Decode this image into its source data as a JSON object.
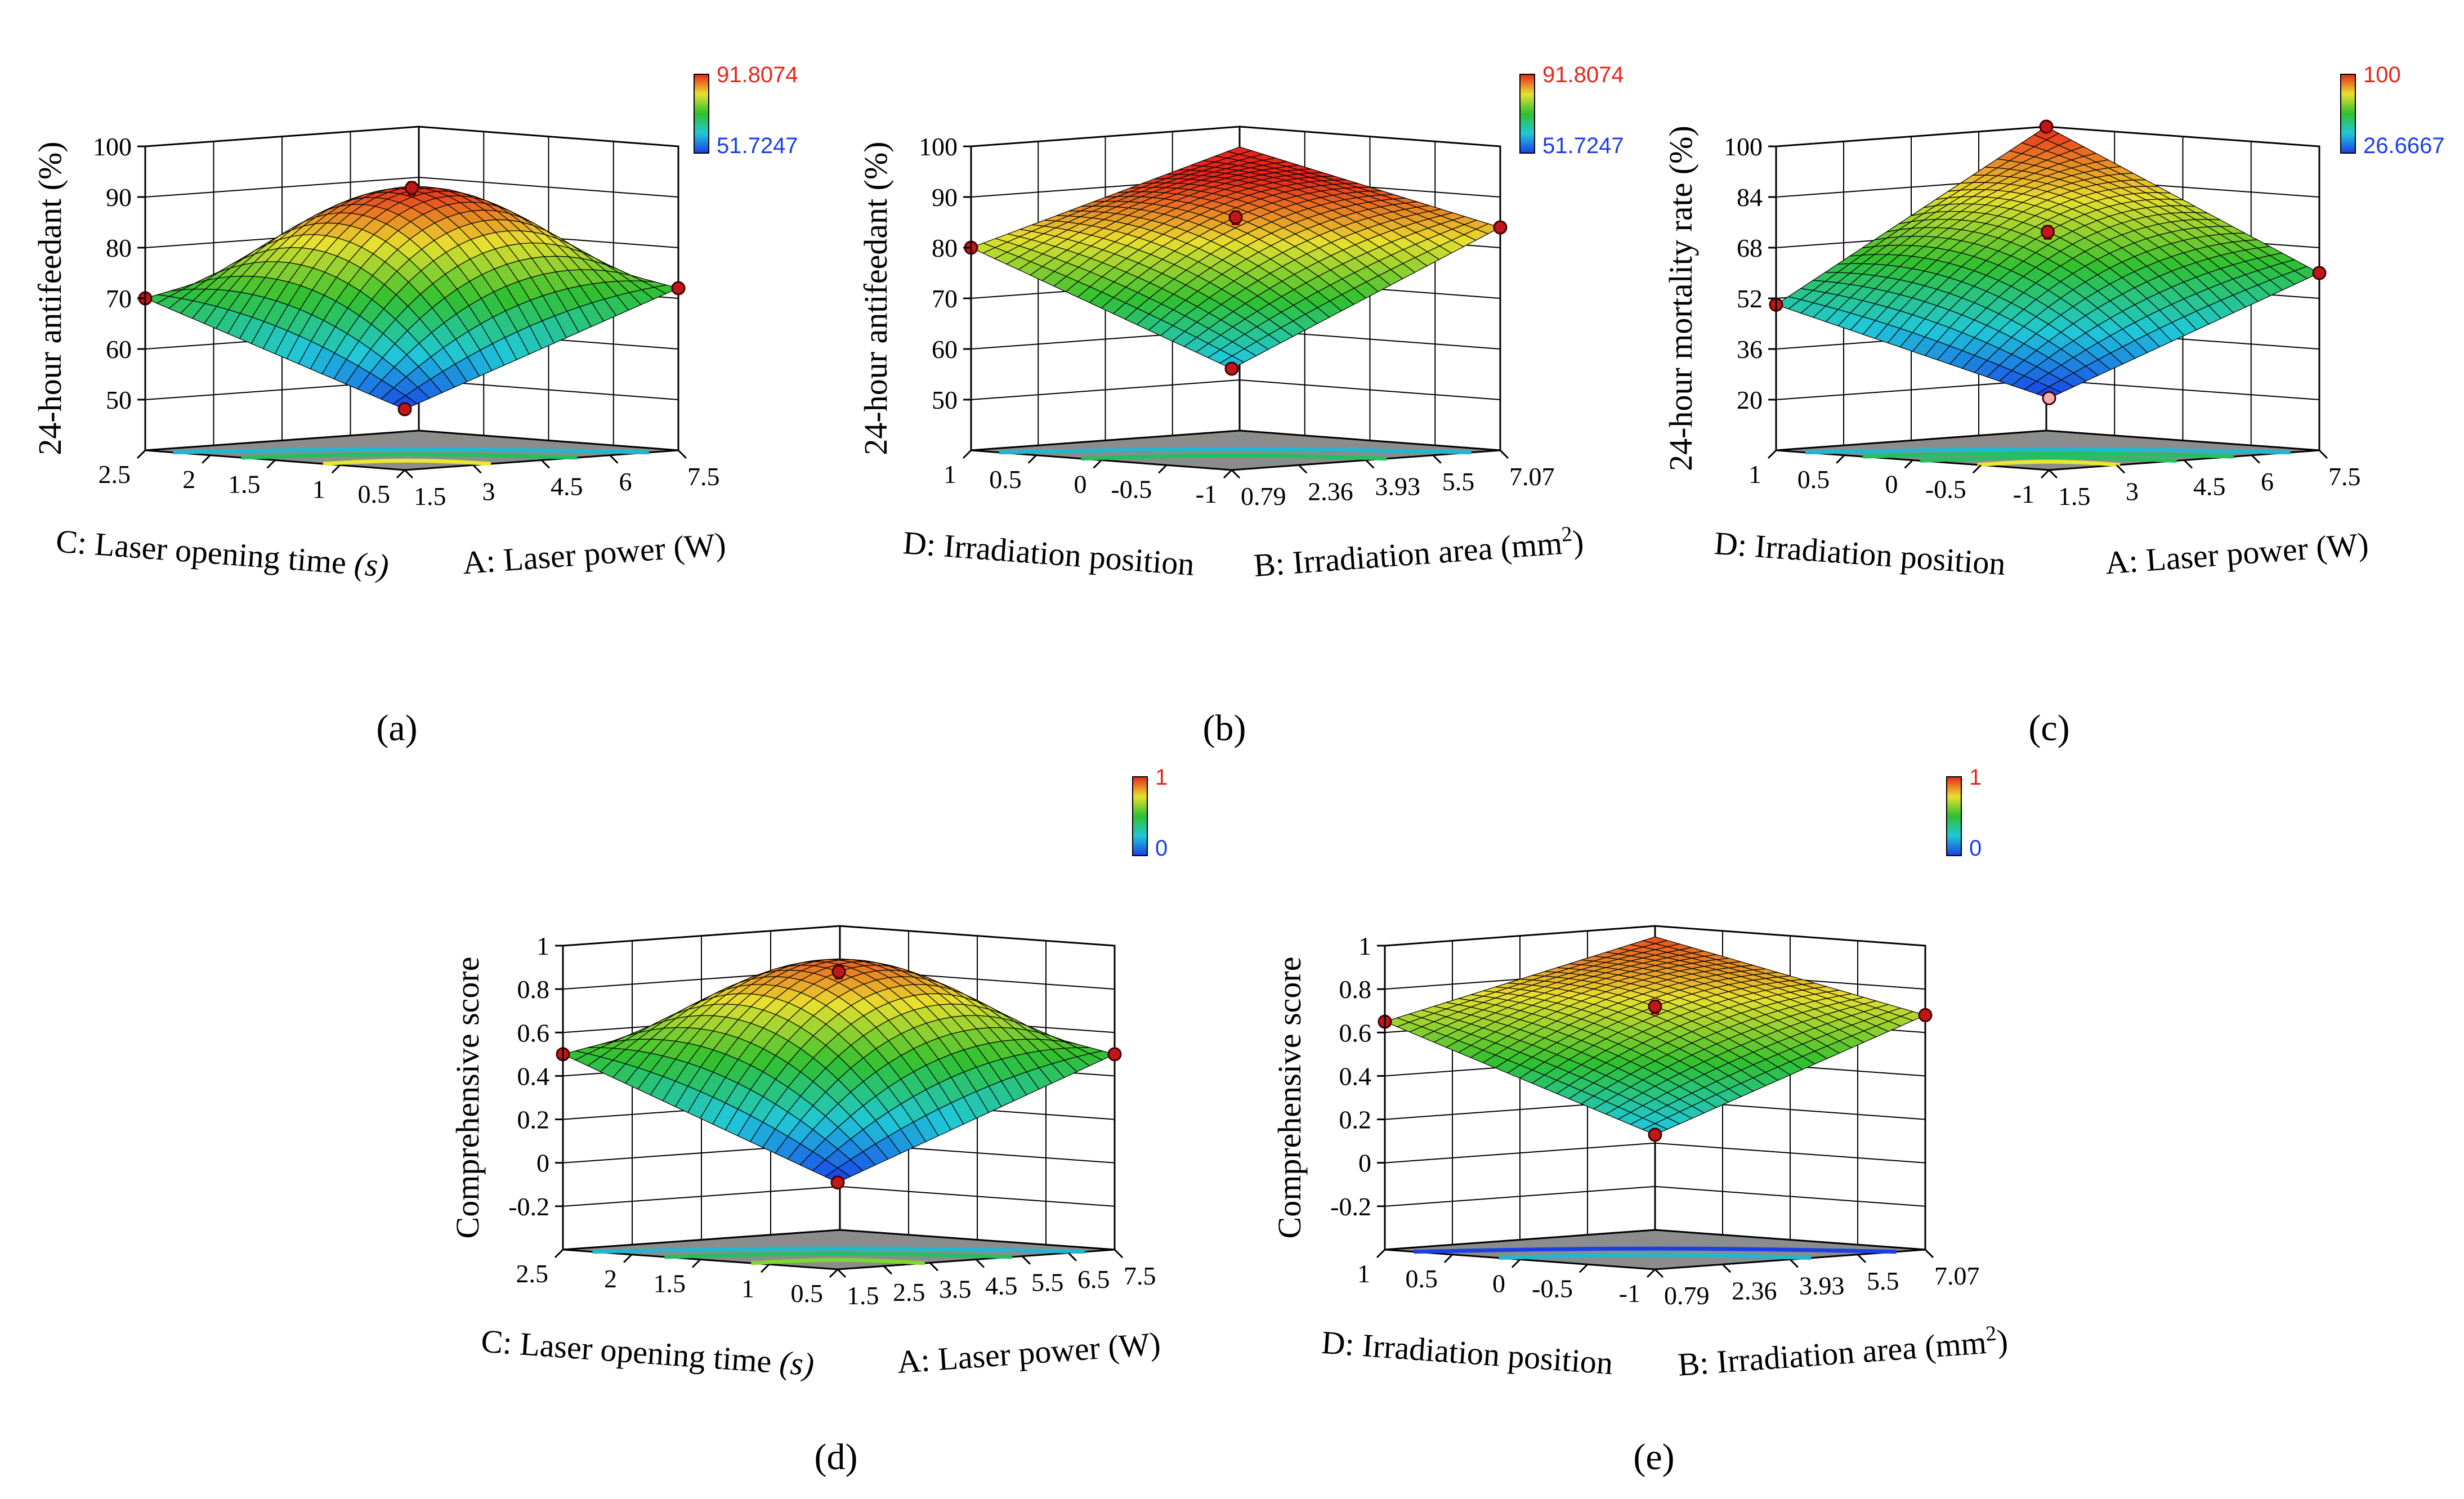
{
  "chart_data": [
    {
      "type": "surface3d",
      "panel_label": "(a)",
      "zlabel": "24-hour antifeedant (%)",
      "xlabel_main": "A: Laser power (W)",
      "xlabel_sup": "",
      "ylabel_main": "C: Laser opening time ",
      "ylabel_italic": "(s)",
      "x_ticks": [
        "1.5",
        "3",
        "4.5",
        "6",
        "7.5"
      ],
      "y_ticks": [
        "0.5",
        "1",
        "1.5",
        "2",
        "2.5"
      ],
      "z_ticks": [
        "50",
        "60",
        "70",
        "80",
        "90",
        "100"
      ],
      "zlim": [
        40,
        100
      ],
      "colorbar": {
        "max_label": "91.8074",
        "min_label": "51.7247",
        "max_color": "#e8261a",
        "min_color": "#1a3ee8"
      },
      "surface": {
        "center": 90,
        "corner_low": 52,
        "corner_left": 70,
        "corner_right": 72,
        "corner_back": 82
      },
      "corner_points": [
        {
          "at": "front",
          "value": 52
        },
        {
          "at": "left",
          "value": 70
        },
        {
          "at": "right",
          "value": 72
        },
        {
          "at": "center",
          "value": 91.8
        }
      ],
      "contours": [
        {
          "t": 0.3,
          "color": "#e8e830"
        },
        {
          "t": 0.6,
          "color": "#22c060"
        },
        {
          "t": 0.85,
          "color": "#20b8d0"
        }
      ]
    },
    {
      "type": "surface3d",
      "panel_label": "(b)",
      "zlabel": "24-hour antifeedant (%)",
      "xlabel_main": "B: Irradiation area (mm",
      "xlabel_sup": "2",
      "ylabel_main": "D: Irradiation position",
      "ylabel_italic": "",
      "x_ticks": [
        "0.79",
        "2.36",
        "3.93",
        "5.5",
        "7.07"
      ],
      "y_ticks": [
        "-1",
        "-0.5",
        "0",
        "0.5",
        "1"
      ],
      "z_ticks": [
        "50",
        "60",
        "70",
        "80",
        "90",
        "100"
      ],
      "zlim": [
        40,
        100
      ],
      "colorbar": {
        "max_label": "91.8074",
        "min_label": "51.7247",
        "max_color": "#e8261a",
        "min_color": "#1a3ee8"
      },
      "surface": {
        "center": 86,
        "corner_low": 60,
        "corner_left": 80,
        "corner_right": 84,
        "corner_back": 96
      },
      "corner_points": [
        {
          "at": "front",
          "value": 60
        },
        {
          "at": "left",
          "value": 80
        },
        {
          "at": "right",
          "value": 84
        },
        {
          "at": "center",
          "value": 86
        }
      ],
      "contours": [
        {
          "t": 0.55,
          "color": "#22c060"
        },
        {
          "t": 0.85,
          "color": "#20b8d0"
        }
      ]
    },
    {
      "type": "surface3d",
      "panel_label": "(c)",
      "zlabel": "24-hour mortality rate (%)",
      "xlabel_main": "A: Laser power (W)",
      "xlabel_sup": "",
      "ylabel_main": "D: Irradiation position",
      "ylabel_italic": "",
      "x_ticks": [
        "1.5",
        "3",
        "4.5",
        "6",
        "7.5"
      ],
      "y_ticks": [
        "-1",
        "-0.5",
        "0",
        "0.5",
        "1"
      ],
      "z_ticks": [
        "20",
        "36",
        "52",
        "68",
        "84",
        "100"
      ],
      "zlim": [
        4,
        100
      ],
      "colorbar": {
        "max_label": "100",
        "min_label": "26.6667",
        "max_color": "#e8261a",
        "min_color": "#1a3ee8"
      },
      "surface": {
        "center": 73,
        "corner_low": 26.7,
        "corner_left": 50,
        "corner_right": 60,
        "corner_back": 100
      },
      "corner_points": [
        {
          "at": "front",
          "value": 26.7
        },
        {
          "at": "left",
          "value": 50
        },
        {
          "at": "right",
          "value": 60
        },
        {
          "at": "back",
          "value": 100
        },
        {
          "at": "center",
          "value": 73
        }
      ],
      "contours": [
        {
          "t": 0.25,
          "color": "#e8e830"
        },
        {
          "t": 0.45,
          "color": "#22c060"
        },
        {
          "t": 0.65,
          "color": "#22c060"
        },
        {
          "t": 0.85,
          "color": "#20b8d0"
        }
      ]
    },
    {
      "type": "surface3d",
      "panel_label": "(d)",
      "zlabel": "Comprehensive score",
      "xlabel_main": "A: Laser power (W)",
      "xlabel_sup": "",
      "ylabel_main": "C: Laser opening time ",
      "ylabel_italic": "(s)",
      "x_ticks": [
        "1.5",
        "2.5",
        "3.5",
        "4.5",
        "5.5",
        "6.5",
        "7.5"
      ],
      "y_ticks": [
        "0.5",
        "1",
        "1.5",
        "2",
        "2.5"
      ],
      "z_ticks": [
        "-0.2",
        "0",
        "0.2",
        "0.4",
        "0.6",
        "0.8",
        "1"
      ],
      "zlim": [
        -0.4,
        1
      ],
      "colorbar": {
        "max_label": "1",
        "min_label": "0",
        "max_color": "#e8261a",
        "min_color": "#1a3ee8"
      },
      "surface": {
        "center": 0.88,
        "corner_low": 0.0,
        "corner_left": 0.5,
        "corner_right": 0.5,
        "corner_back": 0.75
      },
      "corner_points": [
        {
          "at": "front",
          "value": 0.0
        },
        {
          "at": "left",
          "value": 0.5
        },
        {
          "at": "right",
          "value": 0.5
        },
        {
          "at": "center",
          "value": 0.88
        }
      ],
      "contours": [
        {
          "t": 0.3,
          "color": "#7cd830"
        },
        {
          "t": 0.6,
          "color": "#22c060"
        },
        {
          "t": 0.85,
          "color": "#20b8d0"
        }
      ]
    },
    {
      "type": "surface3d",
      "panel_label": "(e)",
      "zlabel": "Comprehensive score",
      "xlabel_main": "B: Irradiation area (mm",
      "xlabel_sup": "2",
      "ylabel_main": "D: Irradiation position",
      "ylabel_italic": "",
      "x_ticks": [
        "0.79",
        "2.36",
        "3.93",
        "5.5",
        "7.07"
      ],
      "y_ticks": [
        "-1",
        "-0.5",
        "0",
        "0.5",
        "1"
      ],
      "z_ticks": [
        "-0.2",
        "0",
        "0.2",
        "0.4",
        "0.6",
        "0.8",
        "1"
      ],
      "zlim": [
        -0.4,
        1
      ],
      "colorbar": {
        "max_label": "1",
        "min_label": "0",
        "max_color": "#e8261a",
        "min_color": "#1a3ee8"
      },
      "surface": {
        "center": 0.72,
        "corner_low": 0.22,
        "corner_left": 0.65,
        "corner_right": 0.68,
        "corner_back": 0.95
      },
      "corner_points": [
        {
          "at": "front",
          "value": 0.22
        },
        {
          "at": "left",
          "value": 0.65
        },
        {
          "at": "right",
          "value": 0.68
        },
        {
          "at": "center",
          "value": 0.72
        }
      ],
      "contours": [
        {
          "t": 0.55,
          "color": "#20b8d0"
        },
        {
          "t": 0.85,
          "color": "#1a3ee8"
        }
      ]
    }
  ]
}
